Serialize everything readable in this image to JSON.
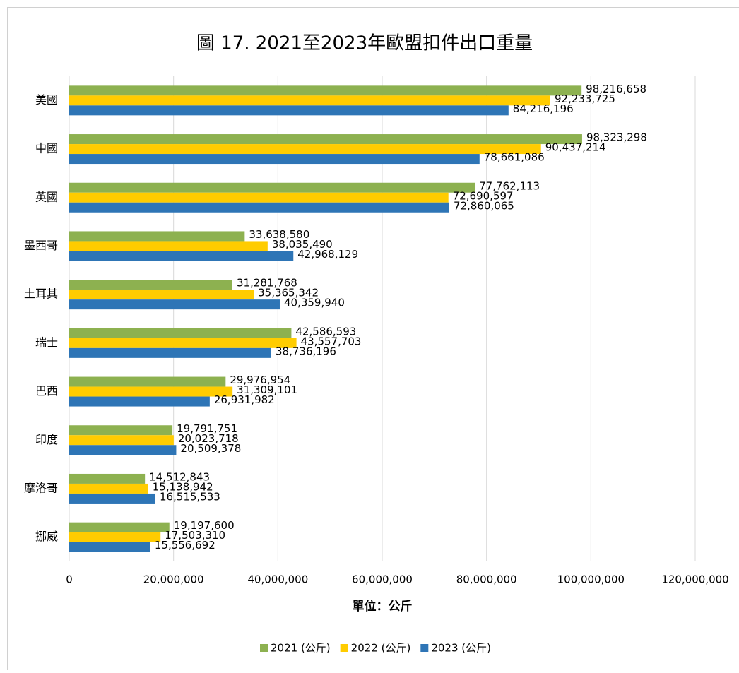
{
  "chart_data": {
    "type": "bar",
    "orientation": "horizontal",
    "title": "圖 17. 2021至2023年歐盟扣件出口重量",
    "x_label": "單位：公斤",
    "categories": [
      "美國",
      "中國",
      "英國",
      "墨西哥",
      "土耳其",
      "瑞士",
      "巴西",
      "印度",
      "摩洛哥",
      "挪威"
    ],
    "series": [
      {
        "name": "2021 (公斤)",
        "color": "#8db150",
        "values": [
          98216658,
          98323298,
          77762113,
          33638580,
          31281768,
          42586593,
          29976954,
          19791751,
          14512843,
          19197600
        ],
        "value_labels": [
          "98,216,658",
          "98,323,298",
          "77,762,113",
          "33,638,580",
          "31,281,768",
          "42,586,593",
          "29,976,954",
          "19,791,751",
          "14,512,843",
          "19,197,600"
        ]
      },
      {
        "name": "2022 (公斤)",
        "color": "#ffcc00",
        "values": [
          92233725,
          90437214,
          72690597,
          38035490,
          35365342,
          43557703,
          31309101,
          20023718,
          15138942,
          17503310
        ],
        "value_labels": [
          "92,233,725",
          "90,437,214",
          "72,690,597",
          "38,035,490",
          "35,365,342",
          "43,557,703",
          "31,309,101",
          "20,023,718",
          "15,138,942",
          "17,503,310"
        ]
      },
      {
        "name": "2023 (公斤)",
        "color": "#2e75b6",
        "values": [
          84216196,
          78661086,
          72860065,
          42968129,
          40359940,
          38736196,
          26931982,
          20509378,
          16515533,
          15556692
        ],
        "value_labels": [
          "84,216,196",
          "78,661,086",
          "72,860,065",
          "42,968,129",
          "40,359,940",
          "38,736,196",
          "26,931,982",
          "20,509,378",
          "16,515,533",
          "15,556,692"
        ]
      }
    ],
    "xlim": [
      0,
      120000000
    ],
    "xticks": [
      0,
      {
        "value": 20000000,
        "label": "20,000,000"
      },
      {
        "value": 40000000,
        "label": "40,000,000"
      },
      {
        "value": 60000000,
        "label": "60,000,000"
      },
      {
        "value": 80000000,
        "label": "80,000,000"
      },
      {
        "value": 100000000,
        "label": "100,000,000"
      },
      {
        "value": 120000000,
        "label": "120,000,000"
      }
    ],
    "grid": true,
    "legend": "bottom"
  }
}
